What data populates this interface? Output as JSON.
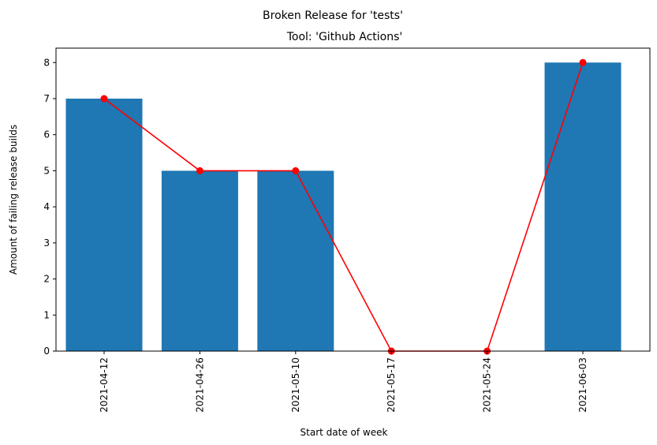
{
  "chart_data": {
    "type": "bar",
    "title": "Broken Release for 'tests'",
    "subtitle": "Tool: 'Github Actions'",
    "xlabel": "Start date of week",
    "ylabel": "Amount of failing release builds",
    "categories": [
      "2021-04-12",
      "2021-04-26",
      "2021-05-10",
      "2021-05-17",
      "2021-05-24",
      "2021-06-03"
    ],
    "values": [
      7,
      5,
      5,
      0,
      0,
      8
    ],
    "line_overlay": {
      "values": [
        7,
        5,
        5,
        0,
        0,
        8
      ],
      "color": "#ff0000",
      "marker": "circle"
    },
    "ylim": [
      0,
      8.4
    ],
    "yticks": [
      0,
      1,
      2,
      3,
      4,
      5,
      6,
      7,
      8
    ],
    "grid": false,
    "colors": {
      "bar": "#1f77b4",
      "line": "#ff0000",
      "axis": "#000000"
    }
  }
}
